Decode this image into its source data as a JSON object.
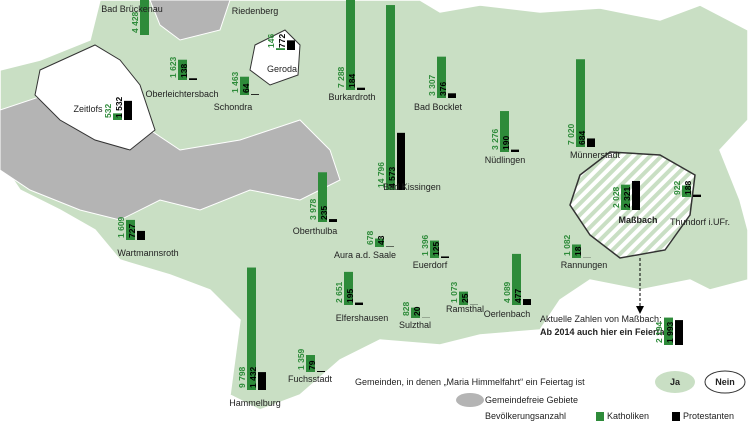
{
  "places": [
    {
      "name": "Zeitlofs",
      "katholiken": 532,
      "protestanten": 1532,
      "protestanten_label": "1 532"
    },
    {
      "name": "Bad Brückenau",
      "katholiken": 4428,
      "katholiken_label": "4 428"
    },
    {
      "name": "Riedenberg"
    },
    {
      "name": "Geroda",
      "katholiken": 146,
      "protestanten": 772
    },
    {
      "name": "Oberleichtersbach",
      "katholiken": 1623,
      "katholiken_label": "1 623",
      "protestanten": 138
    },
    {
      "name": "Schondra",
      "katholiken": 1463,
      "katholiken_label": "1 463",
      "protestanten": 64
    },
    {
      "name": "Burkardroth",
      "katholiken": 7288,
      "katholiken_label": "7 288",
      "protestanten": 184
    },
    {
      "name": "Bad Kissingen",
      "katholiken": 14796,
      "katholiken_label": "14 796",
      "protestanten": 4573,
      "protestanten_label": "4 573"
    },
    {
      "name": "Bad Bocklet",
      "katholiken": 3307,
      "katholiken_label": "3 307",
      "protestanten": 376
    },
    {
      "name": "Nüdlingen",
      "katholiken": 3276,
      "katholiken_label": "3 276",
      "protestanten": 190
    },
    {
      "name": "Münnerstadt",
      "katholiken": 7020,
      "katholiken_label": "7 020",
      "protestanten": 684
    },
    {
      "name": "Maßbach",
      "katholiken": 2028,
      "katholiken_label": "2 028",
      "protestanten": 2321,
      "protestanten_label": "2 321"
    },
    {
      "name": "Thundorf i.UFr.",
      "katholiken": 922,
      "protestanten": 188
    },
    {
      "name": "Oberthulba",
      "katholiken": 3978,
      "katholiken_label": "3 978",
      "protestanten": 235
    },
    {
      "name": "Wartmannsroth",
      "katholiken": 1609,
      "katholiken_label": "1 609",
      "protestanten": 727
    },
    {
      "name": "Aura a.d. Saale",
      "katholiken": 678,
      "protestanten": 43
    },
    {
      "name": "Euerdorf",
      "katholiken": 1396,
      "katholiken_label": "1 396",
      "protestanten": 125
    },
    {
      "name": "Rannungen",
      "katholiken": 1082,
      "katholiken_label": "1 082",
      "protestanten": 18
    },
    {
      "name": "Ramsthal",
      "katholiken": 1073,
      "katholiken_label": "1 073",
      "protestanten": 25
    },
    {
      "name": "Sulzthal",
      "katholiken": 828,
      "protestanten": 20
    },
    {
      "name": "Elfershausen",
      "katholiken": 2651,
      "katholiken_label": "2 651",
      "protestanten": 195
    },
    {
      "name": "Oerlenbach",
      "katholiken": 4089,
      "katholiken_label": "4 089",
      "protestanten": 477
    },
    {
      "name": "Fuchsstadt",
      "katholiken": 1359,
      "katholiken_label": "1 359",
      "protestanten": 79
    },
    {
      "name": "Hammelburg",
      "katholiken": 9798,
      "katholiken_label": "9 798",
      "protestanten": 1432,
      "protestanten_label": "1 432"
    }
  ],
  "update": {
    "katholiken": 2194,
    "katholiken_label": "2 194",
    "protestanten": 1993,
    "protestanten_label": "1 993",
    "line1": "Aktuelle Zahlen von Maßbach:",
    "line2": "Ab 2014 auch hier ein Feiertag!"
  },
  "legend": {
    "holiday": "Gemeinden, in denen „Maria Himmelfahrt“ ein Feiertag ist",
    "ja": "Ja",
    "nein": "Nein",
    "free": "Gemeindefreie Gebiete",
    "population": "Bevölkerungsanzahl",
    "katholiken": "Katholiken",
    "protestanten": "Protestanten"
  }
}
